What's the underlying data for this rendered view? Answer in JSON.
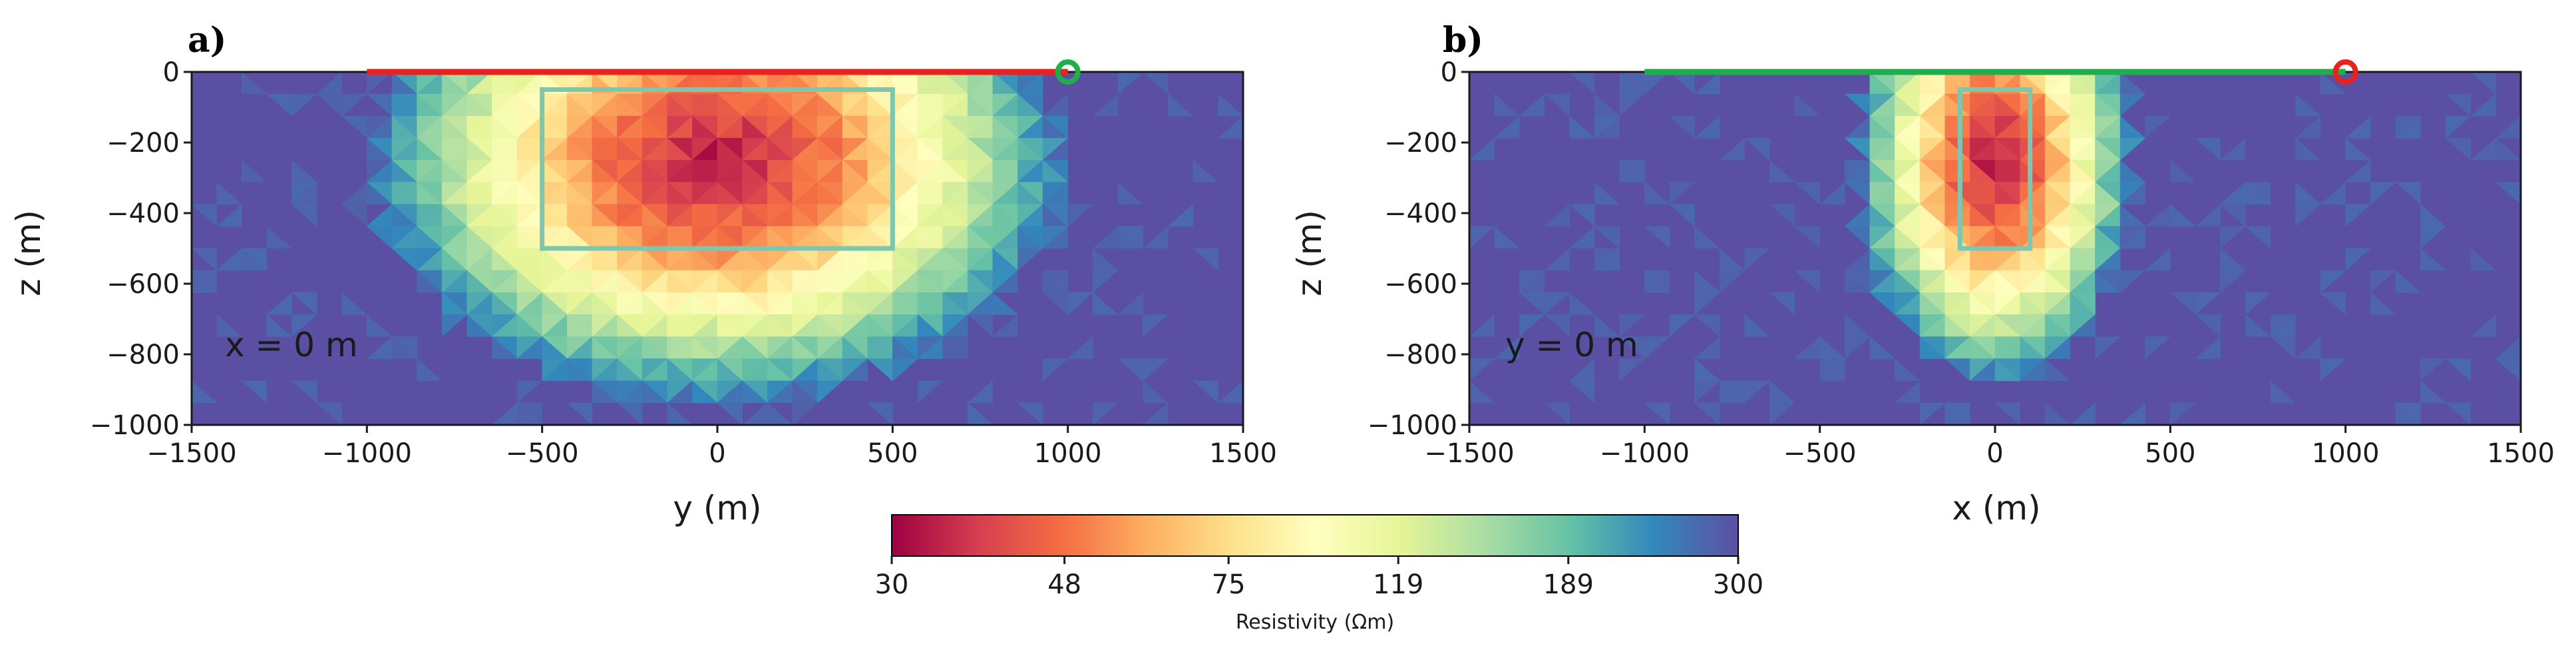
{
  "colors": {
    "background_resistivity": "#5a4fa2",
    "electrode_line_a": "#e8231f",
    "electrode_line_b": "#1fae4b",
    "receiver_a": "#1fae4b",
    "receiver_b": "#e8231f",
    "target_box": "#7bc7b0"
  },
  "colormap": {
    "name": "Spectral",
    "stops": [
      "#9e0142",
      "#d53e4f",
      "#f46d43",
      "#fdae61",
      "#fee08b",
      "#ffffbf",
      "#e6f598",
      "#abdda4",
      "#66c2a5",
      "#3288bd",
      "#5e4fa2"
    ]
  },
  "chart_data": [
    {
      "type": "heatmap",
      "panel_label": "a)",
      "annotation": "x = 0 m",
      "xlabel": "y (m)",
      "ylabel": "z (m)",
      "xlim": [
        -1500,
        1500
      ],
      "ylim": [
        -1000,
        0
      ],
      "xticks": [
        -1500,
        -1000,
        -500,
        0,
        500,
        1000,
        1500
      ],
      "xtick_labels": [
        "−1500",
        "−1000",
        "−500",
        "0",
        "500",
        "1000",
        "1500"
      ],
      "yticks": [
        0,
        -200,
        -400,
        -600,
        -800,
        -1000
      ],
      "ytick_labels": [
        "0",
        "−200",
        "−400",
        "−600",
        "−800",
        "−1000"
      ],
      "survey_line": {
        "x": [
          -1000,
          1000
        ],
        "z": 0
      },
      "receiver": {
        "x": 1000,
        "z": 0
      },
      "target_box": {
        "x": [
          -500,
          500
        ],
        "z": [
          -50,
          -500
        ]
      },
      "anomaly": {
        "center_x": 0,
        "center_z": -250,
        "half_width": 650,
        "half_depth": 450,
        "min_resistivity": 30
      }
    },
    {
      "type": "heatmap",
      "panel_label": "b)",
      "annotation": "y = 0 m",
      "xlabel": "x (m)",
      "ylabel": "z (m)",
      "xlim": [
        -1500,
        1500
      ],
      "ylim": [
        -1000,
        0
      ],
      "xticks": [
        -1500,
        -1000,
        -500,
        0,
        500,
        1000,
        1500
      ],
      "xtick_labels": [
        "−1500",
        "−1000",
        "−500",
        "0",
        "500",
        "1000",
        "1500"
      ],
      "yticks": [
        0,
        -200,
        -400,
        -600,
        -800,
        -1000
      ],
      "ytick_labels": [
        "0",
        "−200",
        "−400",
        "−600",
        "−800",
        "−1000"
      ],
      "survey_line": {
        "x": [
          -1000,
          1000
        ],
        "z": 0
      },
      "receiver": {
        "x": 1000,
        "z": 0
      },
      "target_box": {
        "x": [
          -100,
          100
        ],
        "z": [
          -50,
          -500
        ]
      },
      "anomaly": {
        "center_x": 0,
        "center_z": -250,
        "half_width": 260,
        "half_depth": 420,
        "min_resistivity": 30
      }
    }
  ],
  "colorbar": {
    "ticks": [
      30,
      48,
      75,
      119,
      189,
      300
    ],
    "tick_labels": [
      "30",
      "48",
      "75",
      "119",
      "189",
      "300"
    ],
    "label": "Resistivity (Ωm)"
  }
}
